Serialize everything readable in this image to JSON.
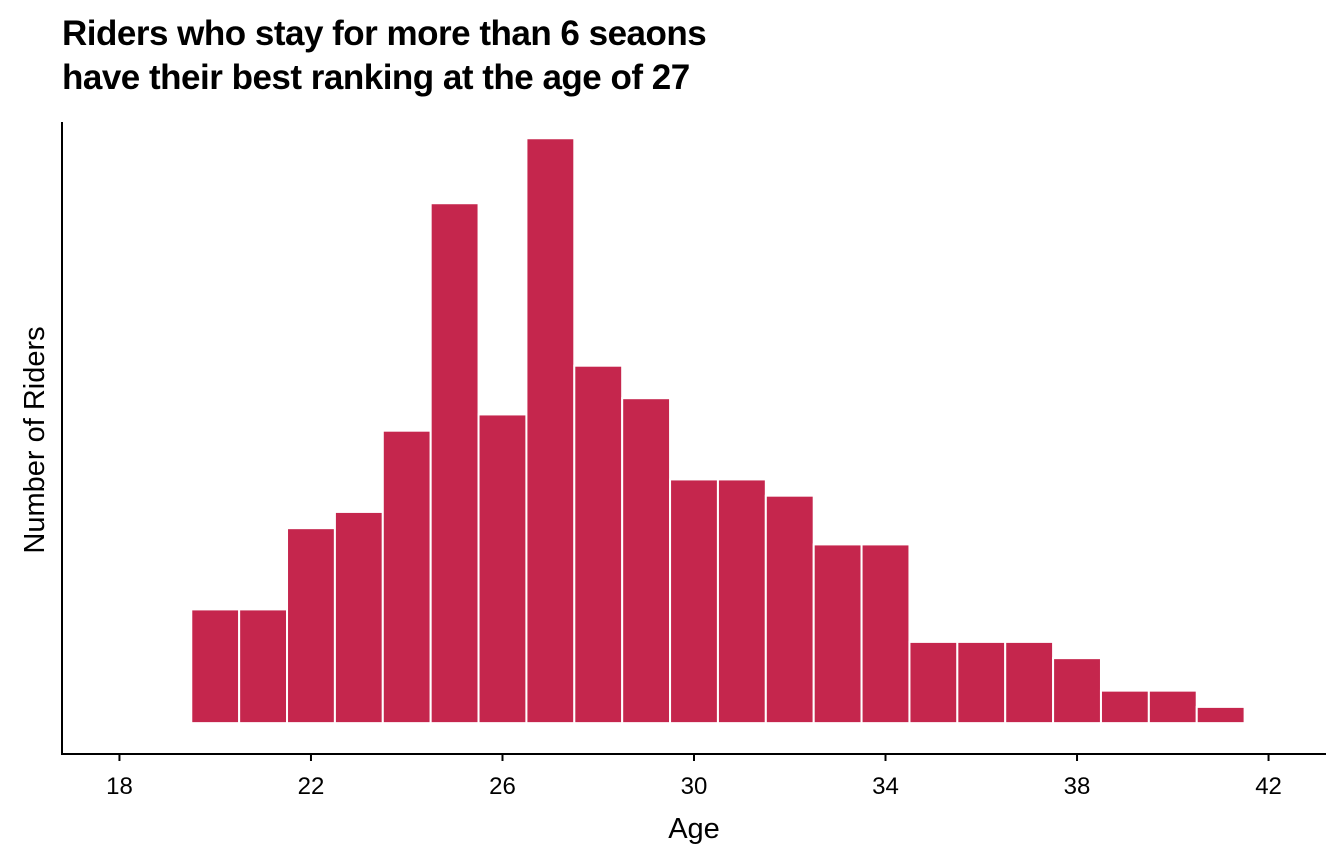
{
  "chart_data": {
    "type": "bar",
    "title_lines": [
      "Riders who stay for more than 6 seaons",
      "have their best ranking at the age of 27"
    ],
    "xlabel": "Age",
    "ylabel": "Number of Riders",
    "xlim": [
      16.8,
      43.2
    ],
    "xticks": [
      18,
      22,
      26,
      30,
      34,
      38,
      42
    ],
    "ylim": [
      -1.9,
      37
    ],
    "categories": [
      20,
      21,
      22,
      23,
      24,
      25,
      26,
      27,
      28,
      29,
      30,
      31,
      32,
      33,
      34,
      35,
      36,
      37,
      38,
      39,
      40,
      41
    ],
    "values": [
      7,
      7,
      12,
      13,
      18,
      32,
      19,
      36,
      22,
      20,
      15,
      15,
      14,
      11,
      11,
      5,
      5,
      5,
      4,
      2,
      2,
      1
    ],
    "bar_color": "#c5264d",
    "grid": false,
    "legend": "none"
  }
}
